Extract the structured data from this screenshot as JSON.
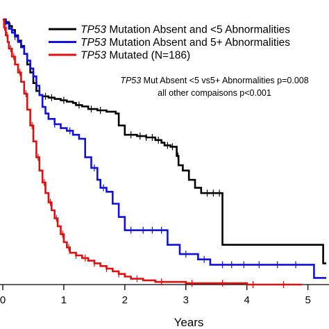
{
  "chart_data": {
    "type": "line",
    "step": true,
    "title": "",
    "xlabel": "Years",
    "ylabel": "",
    "xlim": [
      0,
      5.3
    ],
    "ylim": [
      0,
      1.0
    ],
    "x_ticks": [
      0,
      1,
      2,
      3,
      4,
      5
    ],
    "x_tick_labels": [
      "0",
      "1",
      "2",
      "3",
      "4",
      "5"
    ],
    "grid": false,
    "legend_position": "top-right",
    "legend": [
      {
        "italic": "TP53",
        "rest": " Mutation Absent and <5 Abnormalities",
        "color": "#000000"
      },
      {
        "italic": "TP53",
        "rest": " Mutation Absent and 5+ Abnormalities",
        "color": "#1010e0"
      },
      {
        "italic": "TP53",
        "rest": " Mutated (N=186)",
        "color": "#e01010"
      }
    ],
    "annotations": [
      {
        "italic": "TP53",
        "rest": " Mut Absent <5 vs5+ Abnormalities p=0.008"
      },
      {
        "italic": "",
        "rest": "all other compaisons p<0.001"
      }
    ],
    "series": [
      {
        "color": "#000000",
        "points": [
          [
            0,
            1.0
          ],
          [
            0.05,
            0.99
          ],
          [
            0.1,
            0.975
          ],
          [
            0.15,
            0.96
          ],
          [
            0.2,
            0.94
          ],
          [
            0.25,
            0.92
          ],
          [
            0.3,
            0.9
          ],
          [
            0.35,
            0.87
          ],
          [
            0.4,
            0.83
          ],
          [
            0.45,
            0.8
          ],
          [
            0.5,
            0.76
          ],
          [
            0.55,
            0.73
          ],
          [
            0.6,
            0.715
          ],
          [
            0.65,
            0.71
          ],
          [
            0.75,
            0.705
          ],
          [
            0.85,
            0.7
          ],
          [
            0.95,
            0.695
          ],
          [
            1.05,
            0.69
          ],
          [
            1.15,
            0.685
          ],
          [
            1.2,
            0.677
          ],
          [
            1.3,
            0.672
          ],
          [
            1.4,
            0.662
          ],
          [
            1.55,
            0.657
          ],
          [
            1.7,
            0.652
          ],
          [
            1.85,
            0.645
          ],
          [
            1.9,
            0.6
          ],
          [
            2.0,
            0.565
          ],
          [
            2.2,
            0.56
          ],
          [
            2.35,
            0.555
          ],
          [
            2.5,
            0.545
          ],
          [
            2.6,
            0.535
          ],
          [
            2.65,
            0.525
          ],
          [
            2.75,
            0.52
          ],
          [
            2.85,
            0.485
          ],
          [
            2.88,
            0.45
          ],
          [
            2.95,
            0.43
          ],
          [
            3.05,
            0.395
          ],
          [
            3.15,
            0.365
          ],
          [
            3.25,
            0.345
          ],
          [
            3.6,
            0.15
          ],
          [
            4.0,
            0.15
          ],
          [
            5.2,
            0.15
          ],
          [
            5.25,
            0.08
          ],
          [
            5.3,
            0.08
          ]
        ],
        "censor_x": [
          0.05,
          0.12,
          0.7,
          0.8,
          1.0,
          1.25,
          1.45,
          1.6,
          2.1,
          2.25,
          2.35,
          2.45,
          2.55,
          2.7,
          2.78,
          2.87,
          3.35,
          3.45,
          3.55
        ]
      },
      {
        "color": "#1010e0",
        "points": [
          [
            0,
            1.0
          ],
          [
            0.05,
            0.985
          ],
          [
            0.1,
            0.965
          ],
          [
            0.15,
            0.95
          ],
          [
            0.2,
            0.935
          ],
          [
            0.25,
            0.915
          ],
          [
            0.3,
            0.895
          ],
          [
            0.35,
            0.87
          ],
          [
            0.4,
            0.845
          ],
          [
            0.45,
            0.815
          ],
          [
            0.5,
            0.785
          ],
          [
            0.55,
            0.75
          ],
          [
            0.6,
            0.715
          ],
          [
            0.65,
            0.67
          ],
          [
            0.7,
            0.645
          ],
          [
            0.75,
            0.625
          ],
          [
            0.85,
            0.605
          ],
          [
            0.95,
            0.59
          ],
          [
            1.05,
            0.58
          ],
          [
            1.15,
            0.565
          ],
          [
            1.25,
            0.55
          ],
          [
            1.35,
            0.48
          ],
          [
            1.45,
            0.44
          ],
          [
            1.55,
            0.395
          ],
          [
            1.6,
            0.365
          ],
          [
            1.7,
            0.35
          ],
          [
            1.8,
            0.305
          ],
          [
            1.9,
            0.255
          ],
          [
            2.0,
            0.205
          ],
          [
            2.05,
            0.205
          ],
          [
            2.65,
            0.205
          ],
          [
            2.7,
            0.15
          ],
          [
            2.9,
            0.115
          ],
          [
            3.2,
            0.095
          ],
          [
            3.4,
            0.075
          ],
          [
            5.05,
            0.075
          ],
          [
            5.1,
            0.025
          ],
          [
            5.3,
            0.025
          ]
        ],
        "censor_x": [
          0.2,
          0.5,
          0.85,
          1.1,
          1.5,
          1.65,
          2.1,
          2.3,
          2.45,
          2.6,
          3.0,
          3.3,
          3.6,
          3.75,
          3.95,
          4.2,
          4.5,
          4.8
        ]
      },
      {
        "color": "#e01010",
        "points": [
          [
            0,
            1.0
          ],
          [
            0.02,
            0.97
          ],
          [
            0.05,
            0.94
          ],
          [
            0.08,
            0.915
          ],
          [
            0.1,
            0.89
          ],
          [
            0.15,
            0.86
          ],
          [
            0.2,
            0.83
          ],
          [
            0.25,
            0.8
          ],
          [
            0.3,
            0.765
          ],
          [
            0.35,
            0.72
          ],
          [
            0.4,
            0.66
          ],
          [
            0.45,
            0.6
          ],
          [
            0.5,
            0.54
          ],
          [
            0.55,
            0.48
          ],
          [
            0.6,
            0.43
          ],
          [
            0.65,
            0.385
          ],
          [
            0.7,
            0.345
          ],
          [
            0.75,
            0.31
          ],
          [
            0.8,
            0.28
          ],
          [
            0.85,
            0.25
          ],
          [
            0.9,
            0.22
          ],
          [
            0.95,
            0.19
          ],
          [
            1.0,
            0.16
          ],
          [
            1.05,
            0.14
          ],
          [
            1.1,
            0.12
          ],
          [
            1.2,
            0.11
          ],
          [
            1.3,
            0.1
          ],
          [
            1.4,
            0.09
          ],
          [
            1.5,
            0.08
          ],
          [
            1.6,
            0.07
          ],
          [
            1.7,
            0.06
          ],
          [
            1.8,
            0.05
          ],
          [
            1.9,
            0.04
          ],
          [
            2.0,
            0.03
          ],
          [
            2.1,
            0.022
          ],
          [
            2.3,
            0.016
          ],
          [
            2.5,
            0.01
          ],
          [
            3.0,
            0.005
          ],
          [
            4.0,
            0.0
          ],
          [
            4.9,
            0.0
          ]
        ],
        "censor_x": [
          0.03,
          0.07,
          0.13,
          0.18,
          0.28,
          0.38,
          0.48,
          0.58,
          0.68,
          0.78,
          0.88,
          0.98,
          1.08,
          1.2,
          1.35,
          1.5,
          1.7,
          1.9,
          2.2,
          2.6,
          3.1,
          3.6,
          4.1,
          4.6
        ]
      }
    ]
  }
}
